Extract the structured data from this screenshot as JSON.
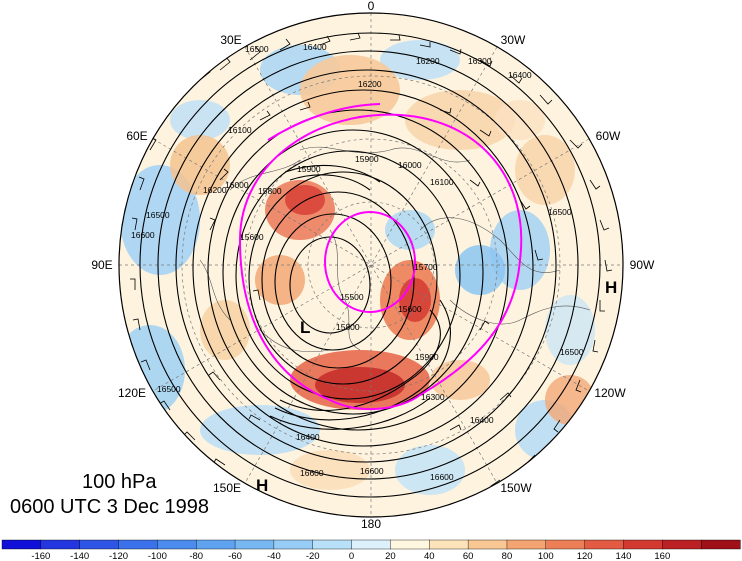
{
  "map": {
    "projection": "north polar stereographic",
    "longitude_labels": [
      {
        "text": "0",
        "lon": 0
      },
      {
        "text": "30W",
        "lon": 30
      },
      {
        "text": "60W",
        "lon": 60
      },
      {
        "text": "90W",
        "lon": 90
      },
      {
        "text": "120W",
        "lon": 120
      },
      {
        "text": "150W",
        "lon": 150
      },
      {
        "text": "180",
        "lon": 180
      },
      {
        "text": "150E",
        "lon": 210
      },
      {
        "text": "120E",
        "lon": 240
      },
      {
        "text": "90E",
        "lon": 270
      },
      {
        "text": "60E",
        "lon": 300
      },
      {
        "text": "30E",
        "lon": 330
      }
    ],
    "pressure_centers": [
      {
        "label": "L",
        "type": "low"
      },
      {
        "label": "H",
        "type": "high"
      },
      {
        "label": "H",
        "type": "high"
      }
    ],
    "contour_labels": [
      "16500",
      "16400",
      "16200",
      "16200",
      "16300",
      "16400",
      "16100",
      "16000",
      "16200",
      "15800",
      "15900",
      "15900",
      "16000",
      "16100",
      "16500",
      "16600",
      "15800",
      "15600",
      "15500",
      "15600",
      "15700",
      "15900",
      "16300",
      "16400",
      "16600",
      "16400",
      "16500",
      "16500",
      "16600",
      "16600",
      "16500"
    ],
    "colors": {
      "contour": "#000000",
      "magenta_contour": "#ff00ff",
      "grid": "#7a7a7a"
    }
  },
  "caption": {
    "level": "100 hPa",
    "time": "0600 UTC 3 Dec 1998"
  },
  "colorbar": {
    "ticks": [
      "-160",
      "-140",
      "-120",
      "-100",
      "-80",
      "-60",
      "-40",
      "-20",
      "0",
      "20",
      "40",
      "60",
      "80",
      "100",
      "120",
      "140",
      "160"
    ],
    "colors": [
      "#1010d8",
      "#2336e0",
      "#2f55e6",
      "#3b71ea",
      "#4b8cee",
      "#5fa3f0",
      "#78b8f2",
      "#96ccf5",
      "#b8e0f8",
      "#dcf1fb",
      "#fff7df",
      "#fde3b9",
      "#f9c794",
      "#f4a472",
      "#ec7f58",
      "#e25b42",
      "#d23a31",
      "#bb2124",
      "#9f1018"
    ]
  }
}
